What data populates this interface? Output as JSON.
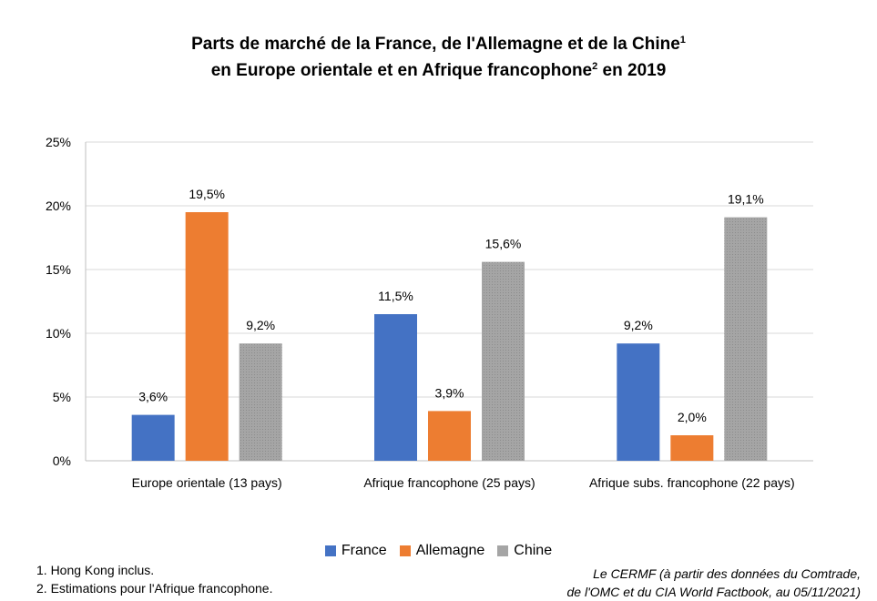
{
  "title_line1": "Parts de marché de la France, de l'Allemagne et de la Chine",
  "title_sup1": "1",
  "title_line2": "en Europe orientale et en Afrique francophone",
  "title_sup2": "2",
  "title_line2_end": " en 2019",
  "footnotes": [
    "1. Hong Kong inclus.",
    "2. Estimations pour l'Afrique francophone."
  ],
  "source_line1": "Le CERMF (à partir des données du Comtrade,",
  "source_line2": "de l'OMC et du CIA World Factbook, au 05/11/2021)",
  "chart_data": {
    "type": "bar",
    "categories": [
      "Europe orientale (13 pays)",
      "Afrique francophone (25 pays)",
      "Afrique subs. francophone (22 pays)"
    ],
    "series": [
      {
        "name": "France",
        "values": [
          3.6,
          11.5,
          9.2
        ],
        "labels": [
          "3,6%",
          "11,5%",
          "9,2%"
        ],
        "color": "#4472C4"
      },
      {
        "name": "Allemagne",
        "values": [
          19.5,
          3.9,
          2.0
        ],
        "labels": [
          "19,5%",
          "3,9%",
          "2,0%"
        ],
        "color": "#ED7D31"
      },
      {
        "name": "Chine",
        "values": [
          9.2,
          15.6,
          19.1
        ],
        "labels": [
          "9,2%",
          "15,6%",
          "19,1%"
        ],
        "color": "#A5A5A5"
      }
    ],
    "ylim": [
      0,
      25
    ],
    "yticks": [
      0,
      5,
      10,
      15,
      20,
      25
    ],
    "ytick_labels": [
      "0%",
      "5%",
      "10%",
      "15%",
      "20%",
      "25%"
    ],
    "grid": true,
    "legend_position": "bottom"
  }
}
